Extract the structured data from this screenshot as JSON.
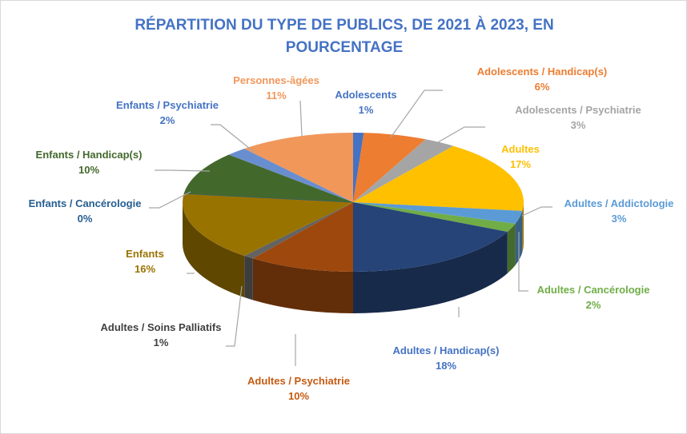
{
  "chart_data": {
    "type": "pie",
    "title": "RÉPARTITION DU TYPE DE PUBLICS, DE 2021 À 2023, EN POURCENTAGE",
    "slices": [
      {
        "label": "Adolescents",
        "value": 1,
        "value_label": "1%",
        "color": "#4472c4"
      },
      {
        "label": "Adolescents / Handicap(s)",
        "value": 6,
        "value_label": "6%",
        "color": "#ed7d31"
      },
      {
        "label": "Adolescents / Psychiatrie",
        "value": 3,
        "value_label": "3%",
        "color": "#a5a5a5"
      },
      {
        "label": "Adultes",
        "value": 17,
        "value_label": "17%",
        "color": "#ffc000"
      },
      {
        "label": "Adultes / Addictologie",
        "value": 3,
        "value_label": "3%",
        "color": "#5b9bd5"
      },
      {
        "label": "Adultes / Cancérologie",
        "value": 2,
        "value_label": "2%",
        "color": "#70ad47"
      },
      {
        "label": "Adultes / Handicap(s)",
        "value": 18,
        "value_label": "18%",
        "color": "#264478"
      },
      {
        "label": "Adultes / Psychiatrie",
        "value": 10,
        "value_label": "10%",
        "color": "#9e480e"
      },
      {
        "label": "Adultes / Soins Palliatifs",
        "value": 1,
        "value_label": "1%",
        "color": "#636363"
      },
      {
        "label": "Enfants",
        "value": 16,
        "value_label": "16%",
        "color": "#997300"
      },
      {
        "label": "Enfants / Cancérologie",
        "value": 0,
        "value_label": "0%",
        "color": "#255e91"
      },
      {
        "label": "Enfants / Handicap(s)",
        "value": 10,
        "value_label": "10%",
        "color": "#43682b"
      },
      {
        "label": "Enfants / Psychiatrie",
        "value": 2,
        "value_label": "2%",
        "color": "#698ed0"
      },
      {
        "label": "Personnes-âgées",
        "value": 11,
        "value_label": "11%",
        "color": "#f1975a"
      }
    ]
  }
}
